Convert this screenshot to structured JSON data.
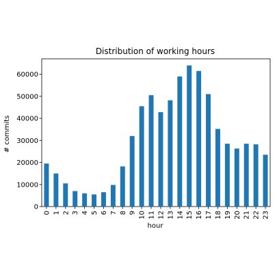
{
  "chart_data": {
    "type": "bar",
    "title": "Distribution of working hours",
    "xlabel": "hour",
    "ylabel": "# commits",
    "categories": [
      "0",
      "1",
      "2",
      "3",
      "4",
      "5",
      "6",
      "7",
      "8",
      "9",
      "10",
      "11",
      "12",
      "13",
      "14",
      "15",
      "16",
      "17",
      "18",
      "19",
      "20",
      "21",
      "22",
      "23"
    ],
    "values": [
      19500,
      15000,
      10500,
      7000,
      6000,
      5500,
      6500,
      9800,
      18200,
      32000,
      45500,
      50500,
      42800,
      48200,
      59000,
      64000,
      61500,
      51000,
      35200,
      28500,
      26300,
      28500,
      28200,
      23500
    ],
    "ylim": [
      0,
      67000
    ],
    "yticks": [
      0,
      10000,
      20000,
      30000,
      40000,
      50000,
      60000
    ],
    "ytick_labels": [
      "0",
      "10000",
      "20000",
      "30000",
      "40000",
      "50000",
      "60000"
    ],
    "bar_color": "#1f77b4",
    "grid": false,
    "legend": "none"
  }
}
